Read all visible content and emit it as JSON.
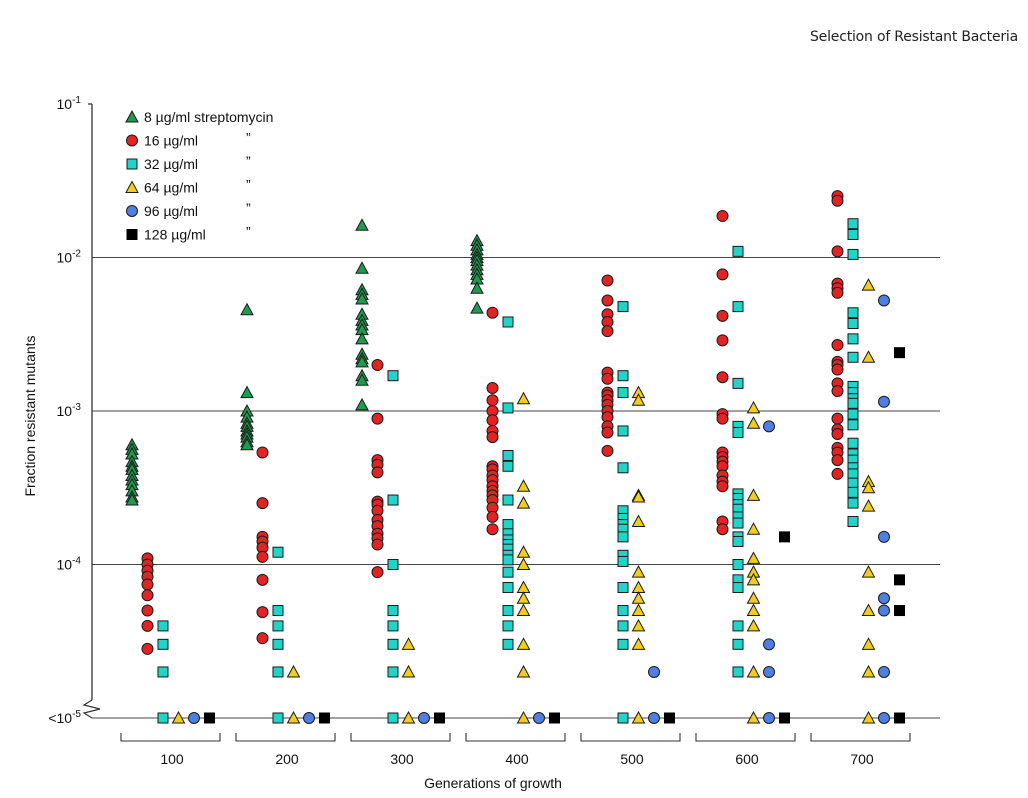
{
  "page": {
    "title": "Selection of Resistant Bacteria"
  },
  "chart_data": {
    "type": "scatter",
    "title": "Selection of Resistant Bacteria",
    "xlabel": "Generations of growth",
    "ylabel": "Fraction resistant mutants",
    "yscale": "log",
    "ylim": [
      -5,
      -1
    ],
    "y_ticks": [
      {
        "value": -1,
        "base": "10",
        "exp": "-1",
        "prefix": ""
      },
      {
        "value": -2,
        "base": "10",
        "exp": "-2",
        "prefix": ""
      },
      {
        "value": -3,
        "base": "10",
        "exp": "-3",
        "prefix": ""
      },
      {
        "value": -4,
        "base": "10",
        "exp": "-4",
        "prefix": ""
      },
      {
        "value": -5,
        "base": "10",
        "exp": "-5",
        "prefix": "<"
      }
    ],
    "gridlines_at": [
      -2,
      -3,
      -4,
      -5
    ],
    "axis_break": true,
    "categories": [
      "100",
      "200",
      "300",
      "400",
      "500",
      "600",
      "700"
    ],
    "legend": {
      "placement": "top-left",
      "ditto": "”",
      "entries": [
        {
          "label": "8 µg/ml streptomycin",
          "ditto": false
        },
        {
          "label": "16 µg/ml",
          "ditto": true
        },
        {
          "label": "32 µg/ml",
          "ditto": true
        },
        {
          "label": "64 µg/ml",
          "ditto": true
        },
        {
          "label": "96 µg/ml",
          "ditto": true
        },
        {
          "label": "128 µg/ml",
          "ditto": true
        }
      ]
    },
    "series": [
      {
        "name": "8 µg/ml streptomycin",
        "marker": "triangle",
        "color": "#1f9a4e",
        "values_log10": {
          "100": [
            -3.22,
            -3.25,
            -3.28,
            -3.33,
            -3.36,
            -3.38,
            -3.42,
            -3.45,
            -3.48,
            -3.52,
            -3.56,
            -3.58
          ],
          "200": [
            -2.34,
            -2.88,
            -3.0,
            -3.04,
            -3.08,
            -3.1,
            -3.13,
            -3.15,
            -3.17,
            -3.2,
            -3.22
          ],
          "300": [
            -1.79,
            -2.07,
            -2.21,
            -2.24,
            -2.27,
            -2.37,
            -2.41,
            -2.44,
            -2.47,
            -2.53,
            -2.63,
            -2.66,
            -2.68,
            -2.77,
            -2.8,
            -2.96
          ],
          "400": [
            -1.89,
            -1.92,
            -1.95,
            -1.98,
            -2.0,
            -2.02,
            -2.05,
            -2.08,
            -2.11,
            -2.14,
            -2.2,
            -2.33
          ]
        }
      },
      {
        "name": "16 µg/ml",
        "marker": "circle",
        "color": "#e02424",
        "values_log10": {
          "100": [
            -3.96,
            -4.0,
            -4.04,
            -4.08,
            -4.13,
            -4.2,
            -4.3,
            -4.4,
            -4.55
          ],
          "200": [
            -3.27,
            -3.6,
            -3.82,
            -3.85,
            -3.89,
            -3.95,
            -4.1,
            -4.31,
            -4.48
          ],
          "300": [
            -2.7,
            -3.05,
            -3.32,
            -3.35,
            -3.4,
            -3.59,
            -3.61,
            -3.65,
            -3.71,
            -3.75,
            -3.8,
            -3.83,
            -3.87,
            -4.05
          ],
          "400": [
            -2.36,
            -2.85,
            -2.93,
            -3.0,
            -3.06,
            -3.13,
            -3.17,
            -3.36,
            -3.38,
            -3.42,
            -3.45,
            -3.49,
            -3.52,
            -3.55,
            -3.58,
            -3.63,
            -3.69,
            -3.77
          ],
          "500": [
            -2.15,
            -2.28,
            -2.37,
            -2.42,
            -2.48,
            -2.75,
            -2.79,
            -2.88,
            -2.9,
            -2.93,
            -2.96,
            -3.0,
            -3.04,
            -3.1,
            -3.14,
            -3.26
          ],
          "600": [
            -1.73,
            -2.11,
            -2.38,
            -2.54,
            -2.78,
            -3.02,
            -3.05,
            -3.27,
            -3.3,
            -3.33,
            -3.36,
            -3.42,
            -3.46,
            -3.49,
            -3.72,
            -3.77
          ],
          "700": [
            -1.6,
            -1.63,
            -1.96,
            -2.17,
            -2.2,
            -2.23,
            -2.57,
            -2.68,
            -2.7,
            -2.73,
            -2.82,
            -2.87,
            -3.05,
            -3.12,
            -3.15,
            -3.24,
            -3.27,
            -3.32,
            -3.41
          ]
        }
      },
      {
        "name": "32 µg/ml",
        "marker": "square",
        "color": "#22d3c8",
        "values_log10": {
          "100": [
            -4.4,
            -4.52,
            -4.7,
            -5.0
          ],
          "200": [
            -3.92,
            -4.3,
            -4.4,
            -4.52,
            -4.7,
            -5.0
          ],
          "300": [
            -2.77,
            -3.58,
            -4.0,
            -4.3,
            -4.4,
            -4.52,
            -4.7,
            -5.0
          ],
          "400": [
            -2.42,
            -2.98,
            -3.29,
            -3.36,
            -3.58,
            -3.74,
            -3.8,
            -3.84,
            -3.87,
            -3.9,
            -3.94,
            -3.97,
            -4.05,
            -4.15,
            -4.3,
            -4.4,
            -4.52
          ],
          "500": [
            -2.32,
            -2.77,
            -2.88,
            -3.13,
            -3.37,
            -3.65,
            -3.7,
            -3.74,
            -3.77,
            -3.82,
            -3.94,
            -3.98,
            -4.15,
            -4.3,
            -4.4,
            -4.52,
            -5.0
          ],
          "600": [
            -1.96,
            -2.32,
            -2.82,
            -3.1,
            -3.14,
            -3.54,
            -3.57,
            -3.61,
            -3.64,
            -3.69,
            -3.73,
            -3.82,
            -3.85,
            -4.0,
            -4.1,
            -4.15,
            -4.4,
            -4.52,
            -4.7
          ],
          "700": [
            -1.78,
            -1.85,
            -1.98,
            -2.36,
            -2.43,
            -2.53,
            -2.65,
            -2.84,
            -2.88,
            -2.92,
            -2.95,
            -3.02,
            -3.09,
            -3.21,
            -3.28,
            -3.32,
            -3.37,
            -3.41,
            -3.47,
            -3.53,
            -3.6,
            -3.72
          ]
        }
      },
      {
        "name": "64 µg/ml",
        "marker": "triangle",
        "color": "#f2cd1e",
        "values_log10": {
          "100": [
            -5.0
          ],
          "200": [
            -4.7,
            -5.0
          ],
          "300": [
            -4.52,
            -4.7,
            -5.0
          ],
          "400": [
            -2.92,
            -3.49,
            -3.6,
            -3.92,
            -4.0,
            -4.15,
            -4.22,
            -4.3,
            -4.52,
            -4.7,
            -5.0
          ],
          "500": [
            -2.88,
            -2.93,
            -3.55,
            -3.56,
            -3.72,
            -4.05,
            -4.15,
            -4.22,
            -4.3,
            -4.4,
            -4.52,
            -5.0
          ],
          "600": [
            -2.98,
            -3.08,
            -3.55,
            -3.77,
            -3.96,
            -4.05,
            -4.1,
            -4.22,
            -4.3,
            -4.4,
            -4.7,
            -5.0
          ],
          "700": [
            -2.18,
            -2.65,
            -3.46,
            -3.5,
            -3.62,
            -4.05,
            -4.3,
            -4.52,
            -4.7,
            -5.0
          ]
        }
      },
      {
        "name": "96 µg/ml",
        "marker": "circle",
        "color": "#4f7fe0",
        "values_log10": {
          "100": [
            -5.0
          ],
          "200": [
            -5.0
          ],
          "300": [
            -5.0
          ],
          "400": [
            -5.0
          ],
          "500": [
            -4.7,
            -5.0
          ],
          "600": [
            -3.1,
            -4.52,
            -4.7,
            -5.0
          ],
          "700": [
            -2.28,
            -2.94,
            -3.82,
            -4.22,
            -4.3,
            -4.7,
            -5.0
          ]
        }
      },
      {
        "name": "128 µg/ml",
        "marker": "square",
        "color": "#000000",
        "values_log10": {
          "100": [
            -5.0
          ],
          "200": [
            -5.0
          ],
          "300": [
            -5.0
          ],
          "400": [
            -5.0
          ],
          "500": [
            -5.0
          ],
          "600": [
            -3.82,
            -5.0
          ],
          "700": [
            -2.62,
            -4.1,
            -4.3,
            -5.0
          ]
        }
      }
    ]
  }
}
